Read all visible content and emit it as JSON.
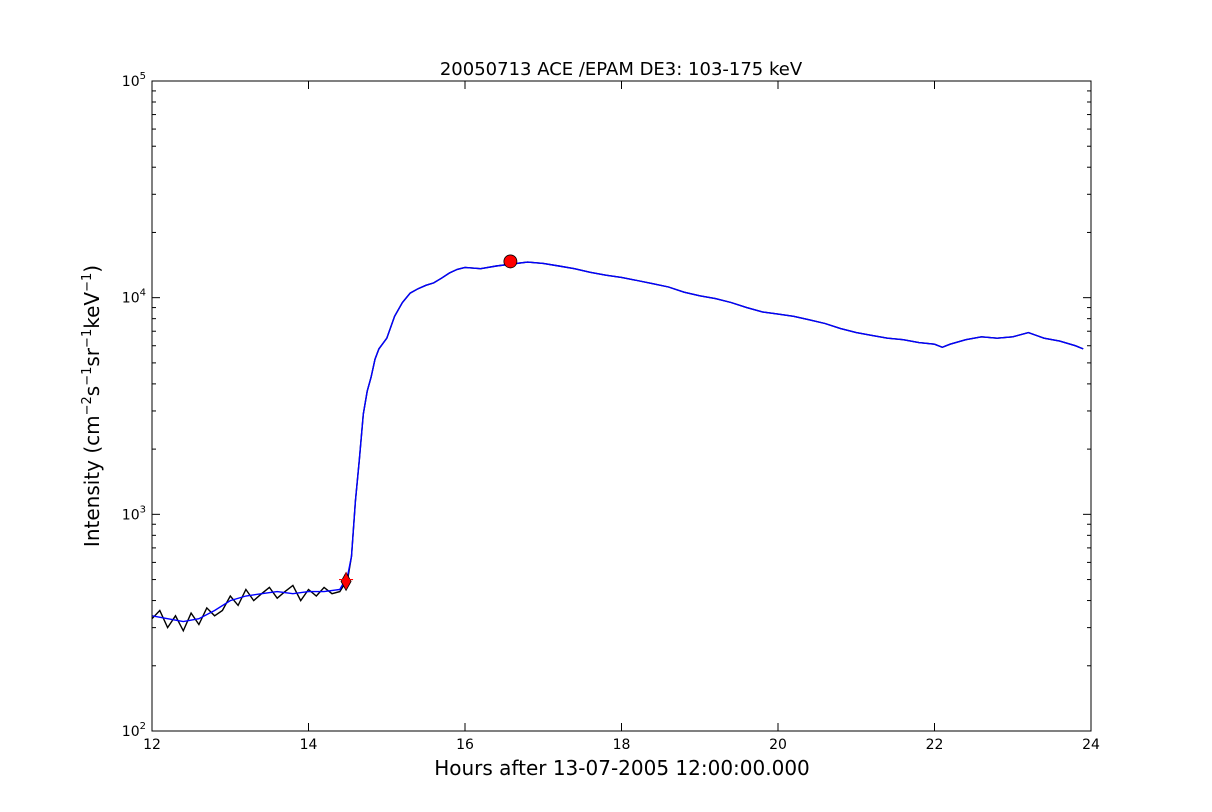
{
  "chart_data": {
    "type": "line",
    "title": "20050713 ACE /EPAM DE3: 103-175 keV",
    "xlabel": "Hours after 13-07-2005 12:00:00.000",
    "ylabel": {
      "parts": [
        "Intensity (cm",
        "−2",
        "s",
        "−1",
        "sr",
        "−1",
        "keV",
        "−1",
        ")"
      ]
    },
    "xlim": [
      12,
      24
    ],
    "ylim": [
      100,
      100000
    ],
    "yscale": "log",
    "grid": false,
    "x_ticks": [
      12,
      14,
      16,
      18,
      20,
      22,
      24
    ],
    "y_ticks": [
      {
        "base": "10",
        "exp": "2",
        "value": 100
      },
      {
        "base": "10",
        "exp": "3",
        "value": 1000
      },
      {
        "base": "10",
        "exp": "4",
        "value": 10000
      },
      {
        "base": "10",
        "exp": "5",
        "value": 100000
      }
    ],
    "series": [
      {
        "role": "raw",
        "color": "#000000",
        "x": [
          12.0,
          12.1,
          12.2,
          12.3,
          12.4,
          12.5,
          12.6,
          12.7,
          12.8,
          12.9,
          13.0,
          13.1,
          13.2,
          13.3,
          13.4,
          13.5,
          13.6,
          13.7,
          13.8,
          13.9,
          14.0,
          14.1,
          14.2,
          14.3,
          14.4,
          14.45,
          14.5,
          14.55,
          14.6,
          14.65,
          14.7,
          14.75,
          14.8,
          14.85,
          14.9,
          15.0,
          15.1,
          15.2,
          15.3,
          15.4,
          15.5,
          15.6,
          15.7,
          15.8,
          15.9,
          16.0,
          16.2,
          16.4,
          16.6,
          16.8,
          17.0,
          17.2,
          17.4,
          17.6,
          17.8,
          18.0,
          18.2,
          18.4,
          18.6,
          18.8,
          19.0,
          19.2,
          19.4,
          19.6,
          19.8,
          20.0,
          20.2,
          20.4,
          20.6,
          20.8,
          21.0,
          21.2,
          21.4,
          21.6,
          21.8,
          22.0,
          22.1,
          22.2,
          22.4,
          22.6,
          22.8,
          23.0,
          23.2,
          23.3,
          23.4,
          23.6,
          23.8,
          23.9
        ],
        "y": [
          330,
          360,
          300,
          340,
          290,
          350,
          310,
          370,
          340,
          360,
          420,
          380,
          450,
          400,
          430,
          460,
          410,
          440,
          470,
          400,
          450,
          420,
          460,
          430,
          440,
          470,
          500,
          640,
          1150,
          1800,
          2900,
          3700,
          4300,
          5200,
          5800,
          6500,
          8200,
          9500,
          10500,
          11000,
          11400,
          11700,
          12300,
          13000,
          13500,
          13800,
          13600,
          14000,
          14300,
          14600,
          14400,
          14000,
          13600,
          13100,
          12700,
          12400,
          12000,
          11600,
          11200,
          10600,
          10200,
          9900,
          9500,
          9000,
          8600,
          8400,
          8200,
          7900,
          7600,
          7200,
          6900,
          6700,
          6500,
          6400,
          6200,
          6100,
          5900,
          6100,
          6400,
          6600,
          6500,
          6600,
          6900,
          6700,
          6500,
          6300,
          6000,
          5800
        ]
      },
      {
        "role": "smoothed",
        "color": "#0000ff",
        "x": [
          12.0,
          12.2,
          12.4,
          12.6,
          12.8,
          13.0,
          13.2,
          13.4,
          13.6,
          13.8,
          14.0,
          14.2,
          14.4,
          14.5,
          14.55,
          14.6,
          14.65,
          14.7,
          14.75,
          14.8,
          14.85,
          14.9,
          15.0,
          15.1,
          15.2,
          15.3,
          15.4,
          15.5,
          15.6,
          15.7,
          15.8,
          15.9,
          16.0,
          16.2,
          16.4,
          16.6,
          16.8,
          17.0,
          17.2,
          17.4,
          17.6,
          17.8,
          18.0,
          18.2,
          18.4,
          18.6,
          18.8,
          19.0,
          19.2,
          19.4,
          19.6,
          19.8,
          20.0,
          20.2,
          20.4,
          20.6,
          20.8,
          21.0,
          21.2,
          21.4,
          21.6,
          21.8,
          22.0,
          22.1,
          22.2,
          22.4,
          22.6,
          22.8,
          23.0,
          23.2,
          23.3,
          23.4,
          23.6,
          23.8,
          23.9
        ],
        "y": [
          340,
          330,
          320,
          330,
          360,
          400,
          420,
          430,
          440,
          430,
          440,
          440,
          450,
          520,
          640,
          1150,
          1800,
          2900,
          3700,
          4300,
          5200,
          5800,
          6500,
          8200,
          9500,
          10500,
          11000,
          11400,
          11700,
          12300,
          13000,
          13500,
          13800,
          13600,
          14000,
          14300,
          14600,
          14400,
          14000,
          13600,
          13100,
          12700,
          12400,
          12000,
          11600,
          11200,
          10600,
          10200,
          9900,
          9500,
          9000,
          8600,
          8400,
          8200,
          7900,
          7600,
          7200,
          6900,
          6700,
          6500,
          6400,
          6200,
          6100,
          5900,
          6100,
          6400,
          6600,
          6500,
          6600,
          6900,
          6700,
          6500,
          6300,
          6000,
          5800
        ]
      }
    ],
    "markers": [
      {
        "shape": "circle",
        "color": "#ff0000",
        "x": 16.58,
        "y": 14700
      },
      {
        "shape": "diamond",
        "color": "#ff0000",
        "x": 14.48,
        "y": 490
      },
      {
        "shape": "plus",
        "color": "#ff0000",
        "x": 14.48,
        "y": 500
      }
    ]
  }
}
